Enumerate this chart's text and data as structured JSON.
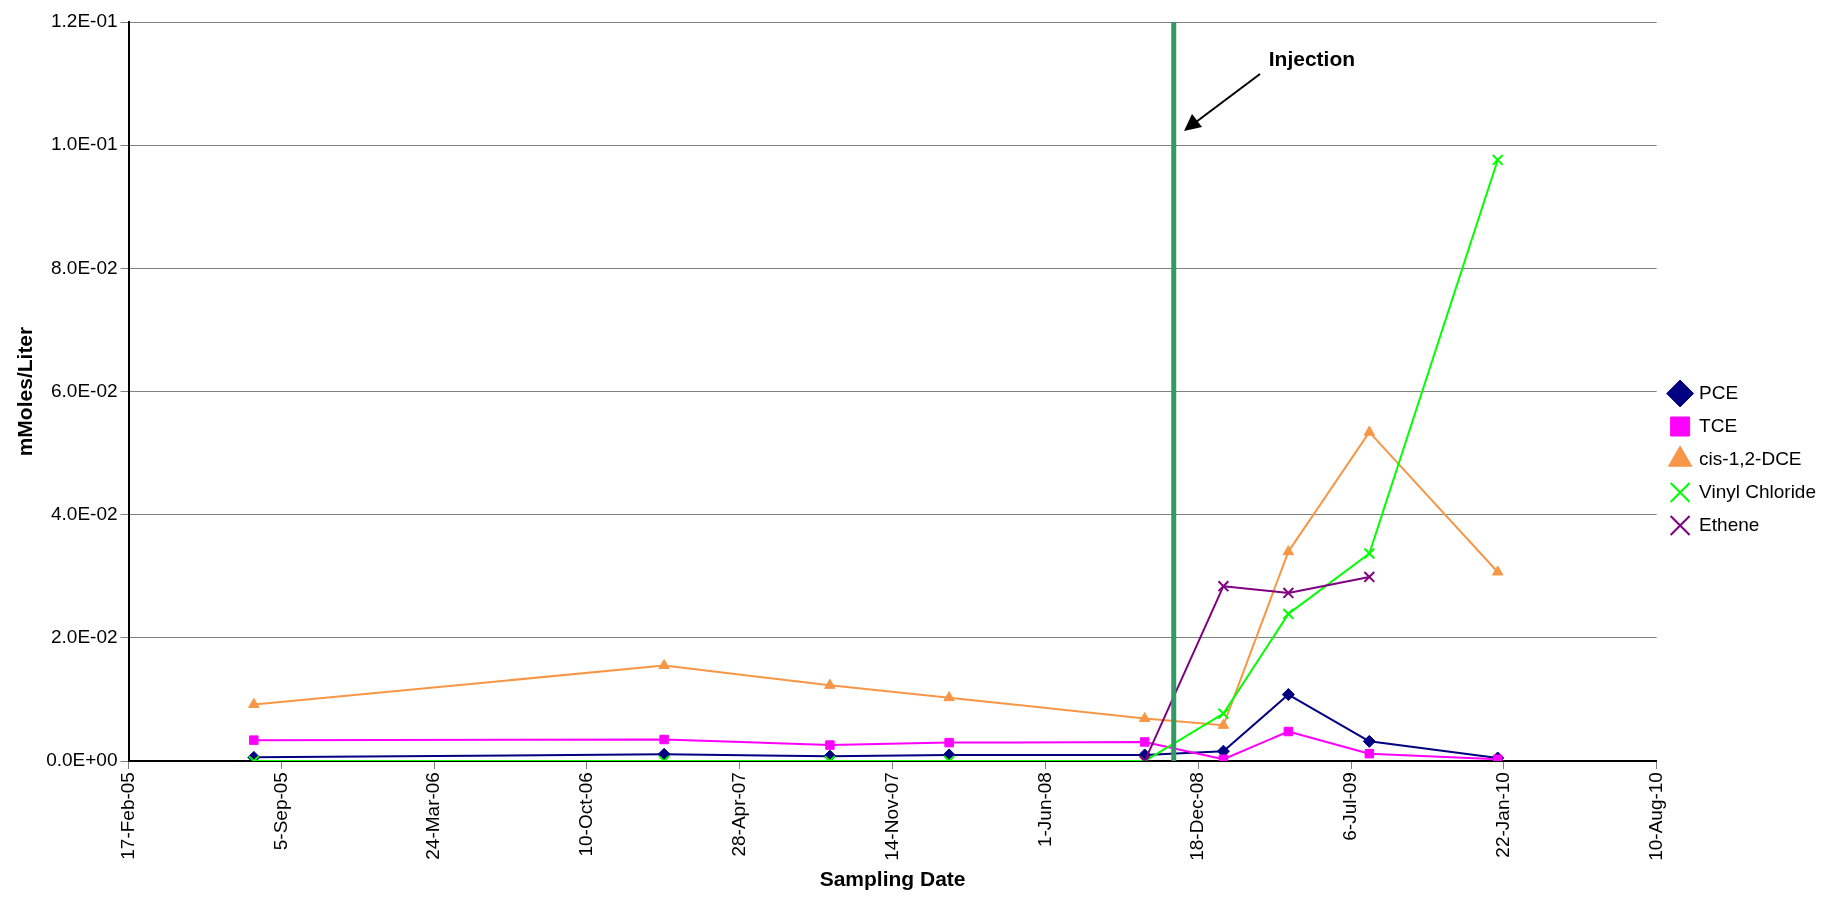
{
  "chart_data": {
    "type": "line",
    "xlabel": "Sampling Date",
    "ylabel": "mMoles/Liter",
    "x": [
      "2005-07-31",
      "2007-01-19",
      "2007-08-24",
      "2008-01-27",
      "2008-10-09",
      "2009-01-20",
      "2009-04-15",
      "2009-07-30",
      "2010-01-14"
    ],
    "series": [
      {
        "name": "PCE",
        "color": "#000080",
        "marker": "diamond",
        "values": [
          0.0006,
          0.0011,
          0.0008,
          0.001,
          0.001,
          0.0016,
          0.0108,
          0.0032,
          0.0005
        ]
      },
      {
        "name": "TCE",
        "color": "#ff00ff",
        "marker": "square",
        "values": [
          0.0034,
          0.0035,
          0.0026,
          0.003,
          0.0031,
          0.0003,
          0.0048,
          0.0012,
          0.0003
        ]
      },
      {
        "name": "cis-1,2-DCE",
        "color": "#f79646",
        "marker": "triangle",
        "values": [
          0.0092,
          0.0155,
          0.0123,
          0.0103,
          0.0069,
          0.0058,
          0.034,
          0.0534,
          0.0307
        ]
      },
      {
        "name": "Vinyl Chloride",
        "color": "#00ff00",
        "marker": "cross",
        "values": [
          0,
          0,
          0,
          0,
          0,
          0.0077,
          0.0239,
          0.0337,
          0.0976
        ]
      },
      {
        "name": "Ethene",
        "color": "#800080",
        "marker": "cross",
        "values": [
          null,
          null,
          null,
          null,
          0,
          0.0284,
          0.0273,
          0.0299,
          null
        ]
      }
    ],
    "xlim": [
      "2005-02-17",
      "2010-08-10"
    ],
    "xticks": [
      {
        "value": "2005-02-17",
        "label": "17-Feb-05"
      },
      {
        "value": "2005-09-05",
        "label": "5-Sep-05"
      },
      {
        "value": "2006-03-24",
        "label": "24-Mar-06"
      },
      {
        "value": "2006-10-10",
        "label": "10-Oct-06"
      },
      {
        "value": "2007-04-28",
        "label": "28-Apr-07"
      },
      {
        "value": "2007-11-14",
        "label": "14-Nov-07"
      },
      {
        "value": "2008-06-01",
        "label": "1-Jun-08"
      },
      {
        "value": "2008-12-18",
        "label": "18-Dec-08"
      },
      {
        "value": "2009-07-06",
        "label": "6-Jul-09"
      },
      {
        "value": "2010-01-22",
        "label": "22-Jan-10"
      },
      {
        "value": "2010-08-10",
        "label": "10-Aug-10"
      }
    ],
    "ylim": [
      0,
      0.12
    ],
    "yticks": [
      {
        "value": 0,
        "label": "0.0E+00"
      },
      {
        "value": 0.02,
        "label": "2.0E-02"
      },
      {
        "value": 0.04,
        "label": "4.0E-02"
      },
      {
        "value": 0.06,
        "label": "6.0E-02"
      },
      {
        "value": 0.08,
        "label": "8.0E-02"
      },
      {
        "value": 0.1,
        "label": "1.0E-01"
      },
      {
        "value": 0.12,
        "label": "1.2E-01"
      }
    ],
    "ref_lines": [
      {
        "axis": "x",
        "value": "2008-11-16",
        "color": "#339966"
      }
    ],
    "annotations": [
      "Injection"
    ],
    "grid": "y",
    "legend": "right"
  }
}
